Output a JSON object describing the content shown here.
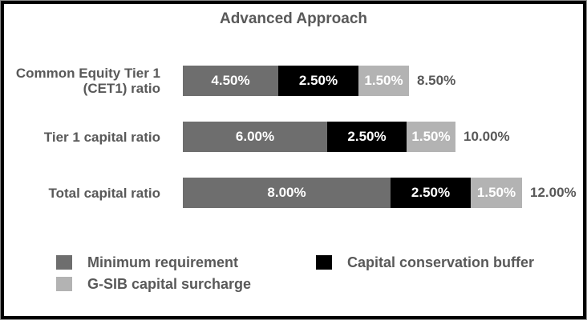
{
  "chart_data": {
    "type": "bar",
    "orientation": "horizontal_stacked",
    "title": "Advanced Approach",
    "categories": [
      "Common Equity Tier 1\n(CET1) ratio",
      "Tier 1 capital ratio",
      "Total capital ratio"
    ],
    "series": [
      {
        "name": "Minimum requirement",
        "color": "#6e6e6e",
        "values": [
          4.5,
          6.0,
          8.0
        ],
        "labels": [
          "4.50%",
          "6.00%",
          "8.00%"
        ]
      },
      {
        "name": "Capital conservation buffer",
        "color": "#000000",
        "values": [
          2.5,
          2.5,
          2.5
        ],
        "labels": [
          "2.50%",
          "2.50%",
          "2.50%"
        ]
      },
      {
        "name": "G-SIB capital surcharge",
        "color": "#b3b3b3",
        "values": [
          1.5,
          1.5,
          1.5
        ],
        "labels": [
          "1.50%",
          "1.50%",
          "1.50%"
        ]
      }
    ],
    "totals": [
      8.5,
      10.0,
      12.0
    ],
    "total_labels": [
      "8.50%",
      "10.00%",
      "12.00%"
    ],
    "legend": [
      {
        "label": "Minimum requirement",
        "color": "#6e6e6e"
      },
      {
        "label": "Capital conservation buffer",
        "color": "#000000"
      },
      {
        "label": "G-SIB capital surcharge",
        "color": "#b3b3b3"
      }
    ],
    "layout": {
      "legend_position": "bottom",
      "grid": false,
      "axes_shown": false,
      "xlim": [
        0,
        12
      ],
      "value_label_color": "#ffffff",
      "text_color": "#595959",
      "frame_color": "#000000",
      "background": "#ffffff"
    }
  }
}
